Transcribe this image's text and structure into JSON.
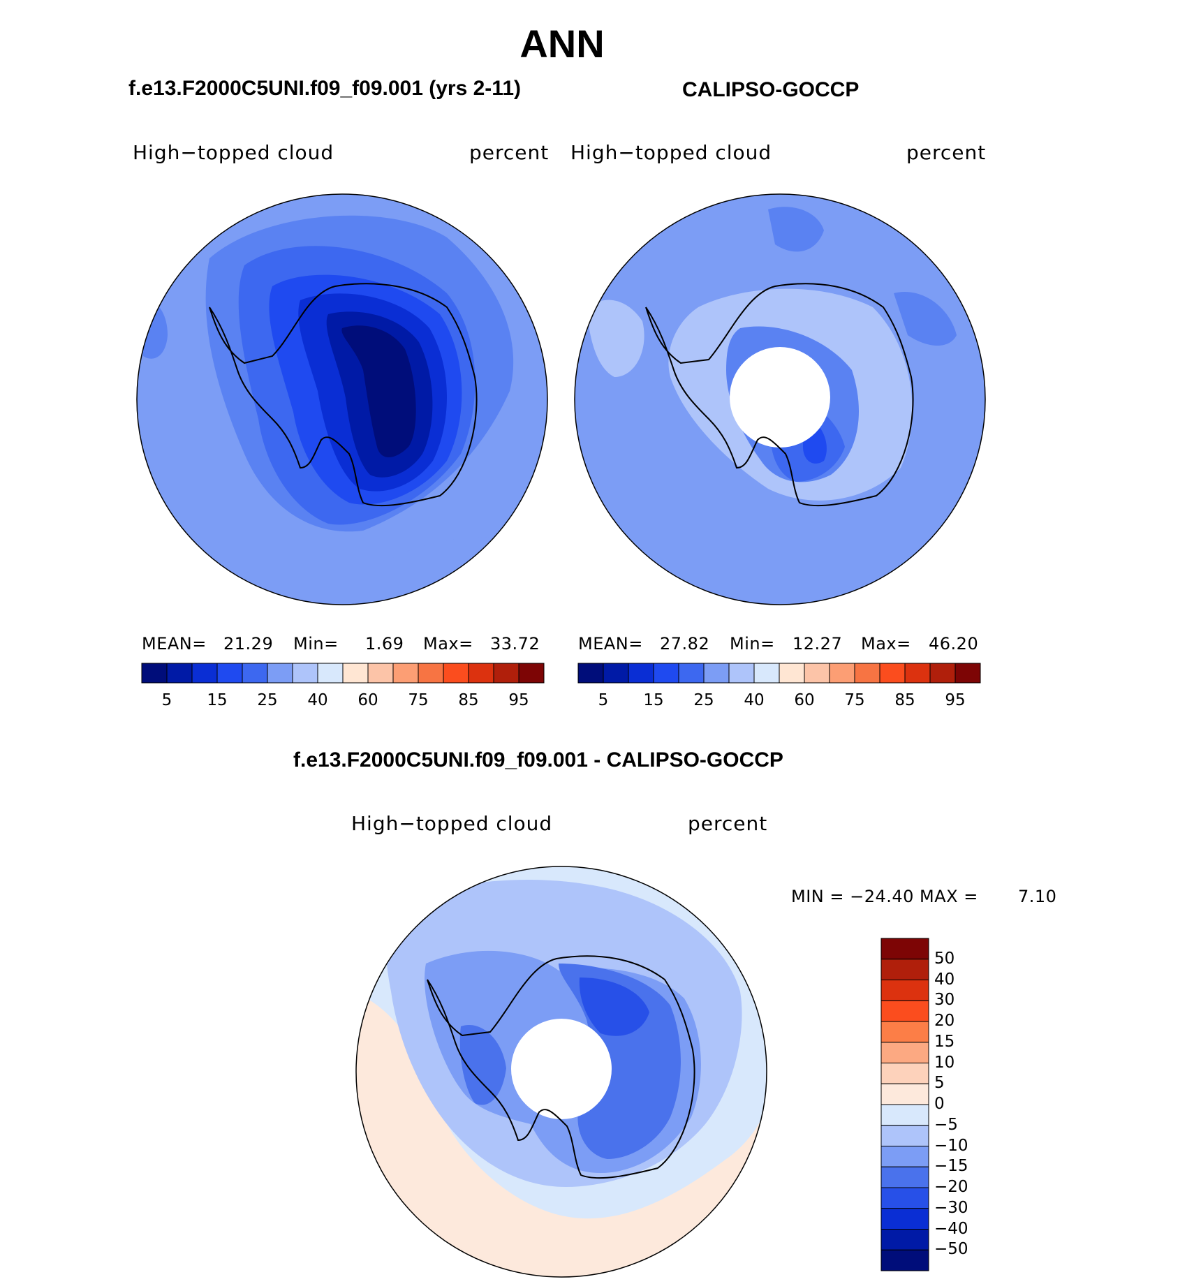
{
  "title": "ANN",
  "panel_left": {
    "header": "f.e13.F2000C5UNI.f09_f09.001 (yrs 2-11)",
    "variable": "High−topped cloud",
    "units": "percent",
    "mean_label": "MEAN=",
    "mean": "21.29",
    "min_label": "Min=",
    "min": "1.69",
    "max_label": "Max=",
    "max": "33.72"
  },
  "panel_right": {
    "header": "CALIPSO-GOCCP",
    "variable": "High−topped cloud",
    "units": "percent",
    "mean_label": "MEAN=",
    "mean": "27.82",
    "min_label": "Min=",
    "min": "12.27",
    "max_label": "Max=",
    "max": "46.20"
  },
  "panel_diff": {
    "header": "f.e13.F2000C5UNI.f09_f09.001 - CALIPSO-GOCCP",
    "variable": "High−topped cloud",
    "units": "percent",
    "minmax_text": "MIN = −24.40 MAX =",
    "max_value": "7.10"
  },
  "abs_colorbar": {
    "colors": [
      "#000d7a",
      "#001aa6",
      "#0a2ed4",
      "#1f4af0",
      "#3d68f0",
      "#7c9df5",
      "#aec4fa",
      "#d8e8fc",
      "#ffe6d3",
      "#fcc4a8",
      "#fc9e74",
      "#f77443",
      "#fb4d1e",
      "#dc320f",
      "#b01f0b",
      "#7d0505"
    ],
    "tick_labels": [
      "5",
      "15",
      "25",
      "40",
      "60",
      "75",
      "85",
      "95"
    ]
  },
  "diff_colorbar": {
    "colors": [
      "#7d0505",
      "#b01f0b",
      "#dc320f",
      "#fb4d1e",
      "#fc7e47",
      "#fca982",
      "#fdd2bb",
      "#fde9dc",
      "#d8e8fc",
      "#aec4fa",
      "#7c9df5",
      "#4a72ec",
      "#2750e8",
      "#0a2ed4",
      "#001aa6",
      "#000d7a"
    ],
    "tick_labels": [
      "50",
      "40",
      "30",
      "20",
      "15",
      "10",
      "5",
      "0",
      "−5",
      "−10",
      "−15",
      "−20",
      "−30",
      "−40",
      "−50"
    ]
  },
  "map_colors": {
    "left": [
      "#7c9df5",
      "#5a82f2",
      "#3d68f0",
      "#1f4af0",
      "#0a2ed4",
      "#001aa6",
      "#000d7a"
    ],
    "right": [
      "#7c9df5",
      "#aec4fa",
      "#5a82f2",
      "#3d68f0",
      "#1f4af0"
    ],
    "diff": [
      "#d8e8fc",
      "#fde9dc",
      "#aec4fa",
      "#7c9df5",
      "#4a72ec",
      "#2750e8"
    ]
  }
}
